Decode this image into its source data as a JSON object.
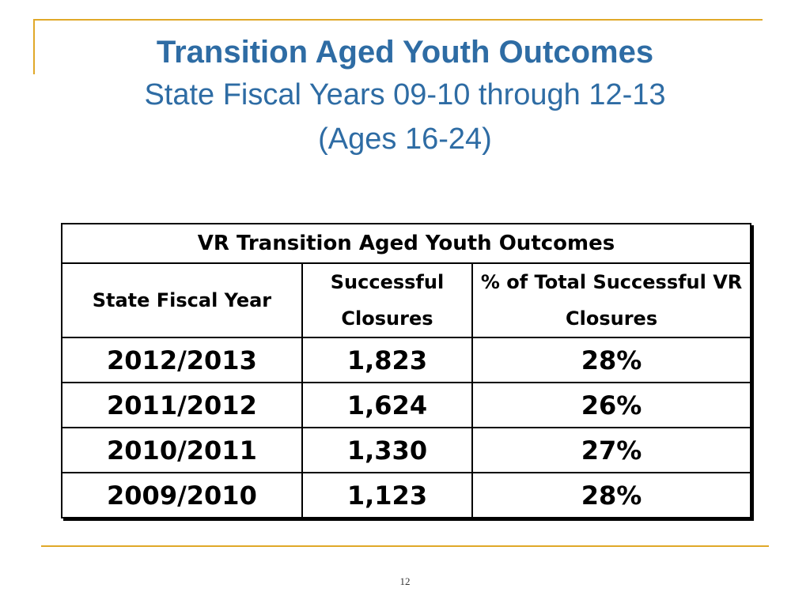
{
  "slide": {
    "title": "Transition Aged Youth Outcomes",
    "subtitle_line1": "State Fiscal Years 09-10 through 12-13",
    "subtitle_line2": "(Ages 16-24)",
    "page_number": "12",
    "colors": {
      "title": "#2e6ca4",
      "accent_line": "#e0a829"
    }
  },
  "table": {
    "caption": "VR Transition Aged Youth Outcomes",
    "headers": {
      "year": "State Fiscal Year",
      "closures": "Successful Closures",
      "percent": "% of Total Successful VR Closures"
    },
    "rows": [
      {
        "year": "2012/2013",
        "closures": "1,823",
        "percent": "28%"
      },
      {
        "year": "2011/2012",
        "closures": "1,624",
        "percent": "26%"
      },
      {
        "year": "2010/2011",
        "closures": "1,330",
        "percent": "27%"
      },
      {
        "year": "2009/2010",
        "closures": "1,123",
        "percent": "28%"
      }
    ]
  }
}
